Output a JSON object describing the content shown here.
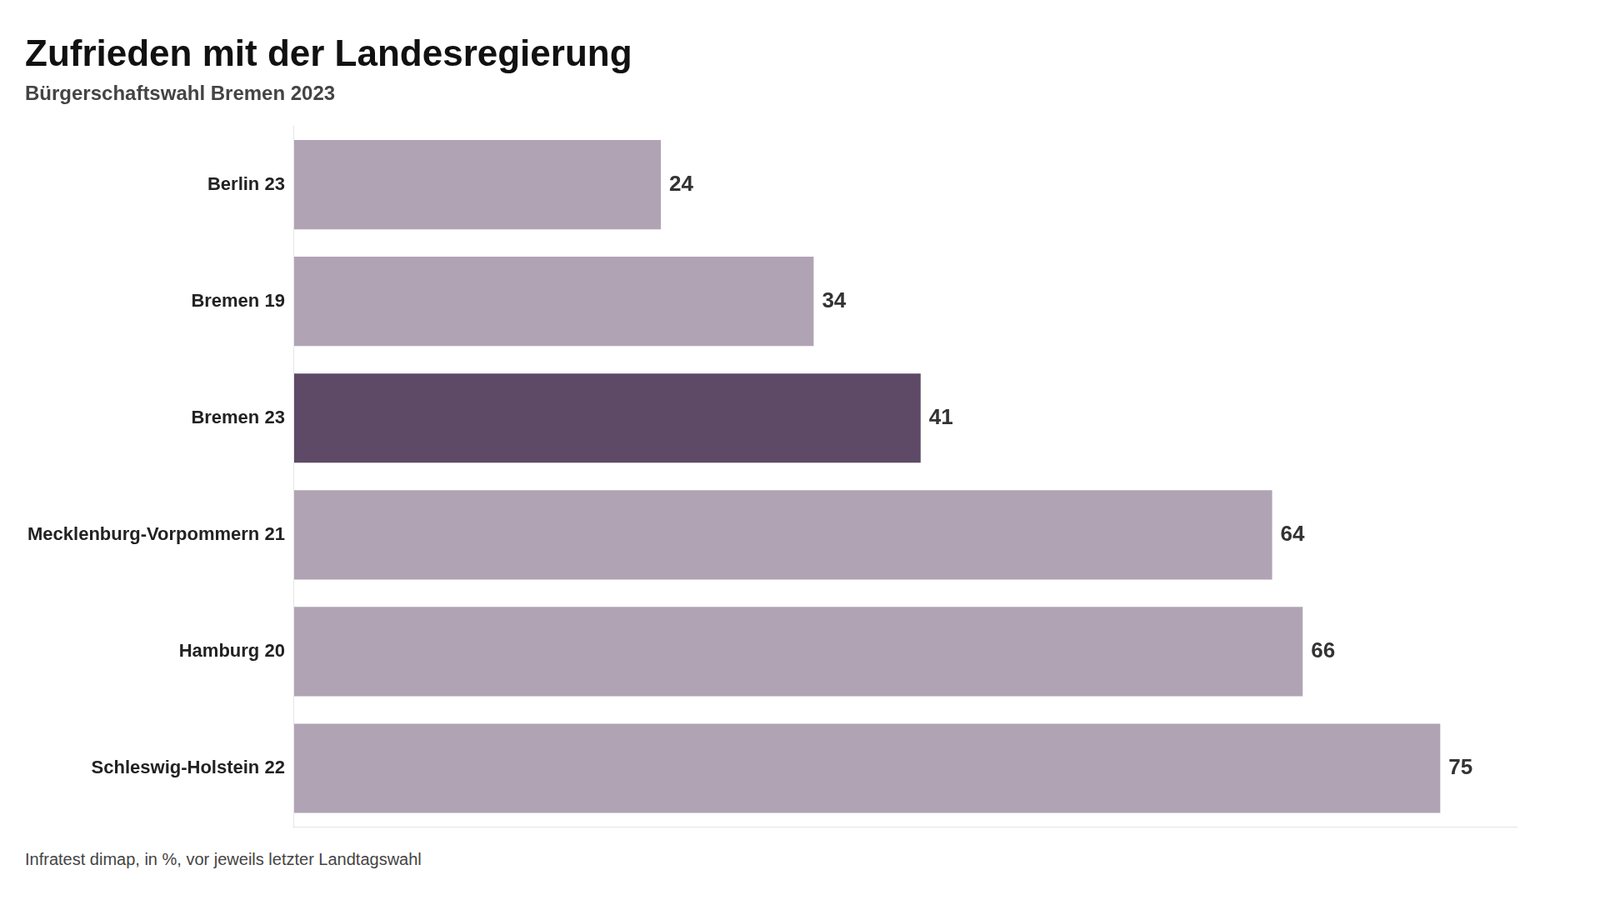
{
  "chart_data": {
    "type": "bar",
    "orientation": "horizontal",
    "title": "Zufrieden mit der Landesregierung",
    "subtitle": "Bürgerschaftswahl Bremen 2023",
    "source": "Infratest dimap, in %, vor jeweils letzter Landtagswahl",
    "categories": [
      "Berlin 23",
      "Bremen 19",
      "Bremen 23",
      "Mecklenburg-Vorpommern 21",
      "Hamburg 20",
      "Schleswig-Holstein 22"
    ],
    "values": [
      24,
      34,
      41,
      64,
      66,
      75
    ],
    "colors": [
      "#b0a4b4",
      "#b0a4b4",
      "#5e4a66",
      "#b0a4b4",
      "#b0a4b4",
      "#b0a4b4"
    ],
    "xlim": [
      0,
      80
    ],
    "grid": false,
    "tick_labels": "y",
    "data_labels": true
  }
}
